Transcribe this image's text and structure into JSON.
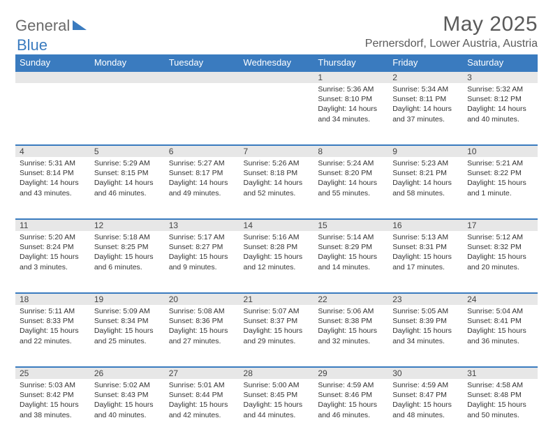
{
  "brand": {
    "part1": "General",
    "part2": "Blue"
  },
  "title": "May 2025",
  "location": "Pernersdorf, Lower Austria, Austria",
  "dayHeaders": [
    "Sunday",
    "Monday",
    "Tuesday",
    "Wednesday",
    "Thursday",
    "Friday",
    "Saturday"
  ],
  "colors": {
    "headerBg": "#3a7bbf",
    "headerText": "#ffffff",
    "dayStripBg": "#e7e7e7",
    "dayStripBorder": "#3a7bbf",
    "bodyText": "#333333",
    "titleText": "#5a5a5a"
  },
  "weeks": [
    [
      null,
      null,
      null,
      null,
      {
        "n": "1",
        "sr": "5:36 AM",
        "ss": "8:10 PM",
        "dl": "14 hours and 34 minutes."
      },
      {
        "n": "2",
        "sr": "5:34 AM",
        "ss": "8:11 PM",
        "dl": "14 hours and 37 minutes."
      },
      {
        "n": "3",
        "sr": "5:32 AM",
        "ss": "8:12 PM",
        "dl": "14 hours and 40 minutes."
      }
    ],
    [
      {
        "n": "4",
        "sr": "5:31 AM",
        "ss": "8:14 PM",
        "dl": "14 hours and 43 minutes."
      },
      {
        "n": "5",
        "sr": "5:29 AM",
        "ss": "8:15 PM",
        "dl": "14 hours and 46 minutes."
      },
      {
        "n": "6",
        "sr": "5:27 AM",
        "ss": "8:17 PM",
        "dl": "14 hours and 49 minutes."
      },
      {
        "n": "7",
        "sr": "5:26 AM",
        "ss": "8:18 PM",
        "dl": "14 hours and 52 minutes."
      },
      {
        "n": "8",
        "sr": "5:24 AM",
        "ss": "8:20 PM",
        "dl": "14 hours and 55 minutes."
      },
      {
        "n": "9",
        "sr": "5:23 AM",
        "ss": "8:21 PM",
        "dl": "14 hours and 58 minutes."
      },
      {
        "n": "10",
        "sr": "5:21 AM",
        "ss": "8:22 PM",
        "dl": "15 hours and 1 minute."
      }
    ],
    [
      {
        "n": "11",
        "sr": "5:20 AM",
        "ss": "8:24 PM",
        "dl": "15 hours and 3 minutes."
      },
      {
        "n": "12",
        "sr": "5:18 AM",
        "ss": "8:25 PM",
        "dl": "15 hours and 6 minutes."
      },
      {
        "n": "13",
        "sr": "5:17 AM",
        "ss": "8:27 PM",
        "dl": "15 hours and 9 minutes."
      },
      {
        "n": "14",
        "sr": "5:16 AM",
        "ss": "8:28 PM",
        "dl": "15 hours and 12 minutes."
      },
      {
        "n": "15",
        "sr": "5:14 AM",
        "ss": "8:29 PM",
        "dl": "15 hours and 14 minutes."
      },
      {
        "n": "16",
        "sr": "5:13 AM",
        "ss": "8:31 PM",
        "dl": "15 hours and 17 minutes."
      },
      {
        "n": "17",
        "sr": "5:12 AM",
        "ss": "8:32 PM",
        "dl": "15 hours and 20 minutes."
      }
    ],
    [
      {
        "n": "18",
        "sr": "5:11 AM",
        "ss": "8:33 PM",
        "dl": "15 hours and 22 minutes."
      },
      {
        "n": "19",
        "sr": "5:09 AM",
        "ss": "8:34 PM",
        "dl": "15 hours and 25 minutes."
      },
      {
        "n": "20",
        "sr": "5:08 AM",
        "ss": "8:36 PM",
        "dl": "15 hours and 27 minutes."
      },
      {
        "n": "21",
        "sr": "5:07 AM",
        "ss": "8:37 PM",
        "dl": "15 hours and 29 minutes."
      },
      {
        "n": "22",
        "sr": "5:06 AM",
        "ss": "8:38 PM",
        "dl": "15 hours and 32 minutes."
      },
      {
        "n": "23",
        "sr": "5:05 AM",
        "ss": "8:39 PM",
        "dl": "15 hours and 34 minutes."
      },
      {
        "n": "24",
        "sr": "5:04 AM",
        "ss": "8:41 PM",
        "dl": "15 hours and 36 minutes."
      }
    ],
    [
      {
        "n": "25",
        "sr": "5:03 AM",
        "ss": "8:42 PM",
        "dl": "15 hours and 38 minutes."
      },
      {
        "n": "26",
        "sr": "5:02 AM",
        "ss": "8:43 PM",
        "dl": "15 hours and 40 minutes."
      },
      {
        "n": "27",
        "sr": "5:01 AM",
        "ss": "8:44 PM",
        "dl": "15 hours and 42 minutes."
      },
      {
        "n": "28",
        "sr": "5:00 AM",
        "ss": "8:45 PM",
        "dl": "15 hours and 44 minutes."
      },
      {
        "n": "29",
        "sr": "4:59 AM",
        "ss": "8:46 PM",
        "dl": "15 hours and 46 minutes."
      },
      {
        "n": "30",
        "sr": "4:59 AM",
        "ss": "8:47 PM",
        "dl": "15 hours and 48 minutes."
      },
      {
        "n": "31",
        "sr": "4:58 AM",
        "ss": "8:48 PM",
        "dl": "15 hours and 50 minutes."
      }
    ]
  ],
  "labels": {
    "sunrise": "Sunrise:",
    "sunset": "Sunset:",
    "daylight": "Daylight:"
  }
}
